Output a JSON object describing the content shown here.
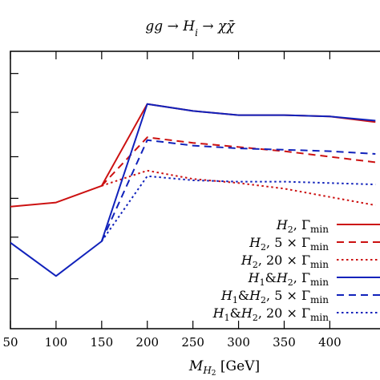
{
  "chart_data": {
    "type": "line",
    "title": "gg → H_i → χχ̄",
    "xlabel": "M_H2 [GeV]",
    "ylabel": "",
    "x": [
      50,
      100,
      150,
      200,
      250,
      300,
      350,
      400,
      450
    ],
    "xticks": [
      "50",
      "100",
      "150",
      "200",
      "250",
      "300",
      "350",
      "400"
    ],
    "xlim": [
      50,
      455
    ],
    "ylim": [
      0,
      100
    ],
    "ytick_positions": [
      92,
      78,
      62,
      47,
      33,
      18
    ],
    "series": [
      {
        "name": "H2, Γmin",
        "color": "#cc1111",
        "dash": "solid",
        "values": [
          44,
          45.5,
          51.5,
          81,
          78.5,
          77,
          77,
          76.5,
          74.5
        ]
      },
      {
        "name": "H2, 5 × Γmin",
        "color": "#cc1111",
        "dash": "dashed",
        "values": [
          null,
          null,
          51.5,
          69,
          67,
          65.5,
          64,
          62,
          60
        ]
      },
      {
        "name": "H2, 20 × Γmin",
        "color": "#cc1111",
        "dash": "dotted",
        "values": [
          null,
          null,
          51.5,
          57,
          54,
          52.5,
          50.5,
          47.5,
          44.5
        ]
      },
      {
        "name": "H1&H2, Γmin",
        "color": "#1122bb",
        "dash": "solid",
        "values": [
          31,
          19,
          31.5,
          81,
          78.5,
          77,
          77,
          76.5,
          75
        ]
      },
      {
        "name": "H1&H2, 5 × Γmin",
        "color": "#1122bb",
        "dash": "dashed",
        "values": [
          null,
          null,
          31.5,
          68,
          66,
          65,
          64.5,
          64,
          63
        ]
      },
      {
        "name": "H1&H2, 20 × Γmin",
        "color": "#1122bb",
        "dash": "dotted",
        "values": [
          null,
          null,
          31.5,
          55,
          53.5,
          53,
          53,
          52.5,
          52
        ]
      }
    ],
    "legend_placement": "bottom-right",
    "grid": false
  }
}
